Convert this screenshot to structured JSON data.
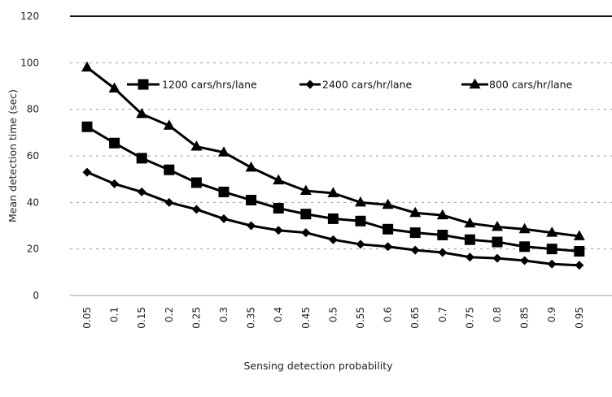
{
  "chart_data": {
    "type": "line",
    "title": "",
    "xlabel": "Sensing detection probability",
    "ylabel": "Mean detection time (sec)",
    "ylim": [
      0,
      120
    ],
    "yticks": [
      "0",
      "20",
      "40",
      "60",
      "80",
      "100",
      "120"
    ],
    "grid": "horizontal",
    "legend_position": "top-right",
    "categories": [
      "0.05",
      "0.1",
      "0.15",
      "0.2",
      "0.25",
      "0.3",
      "0.35",
      "0.4",
      "0.45",
      "0.5",
      "0.55",
      "0.6",
      "0.65",
      "0.7",
      "0.75",
      "0.8",
      "0.85",
      "0.9",
      "0.95"
    ],
    "series": [
      {
        "name": "1200 cars/hrs/lane",
        "marker": "square",
        "values": [
          72.5,
          65.5,
          59,
          54,
          48.5,
          44.5,
          41,
          37.5,
          35,
          33,
          32,
          28.5,
          27,
          26,
          24,
          23,
          21,
          20,
          19
        ]
      },
      {
        "name": "2400 cars/hr/lane",
        "marker": "diamond",
        "values": [
          53,
          48,
          44.5,
          40,
          37,
          33,
          30,
          28,
          27,
          24,
          22,
          21,
          19.5,
          18.5,
          16.5,
          16,
          15,
          13.5,
          13
        ]
      },
      {
        "name": "800 cars/hr/lane",
        "marker": "triangle",
        "values": [
          98,
          89,
          78,
          73,
          64,
          61.5,
          55,
          49.5,
          45,
          44,
          40,
          39,
          35.5,
          34.5,
          31,
          29.5,
          28.5,
          27,
          25.5
        ]
      }
    ]
  }
}
